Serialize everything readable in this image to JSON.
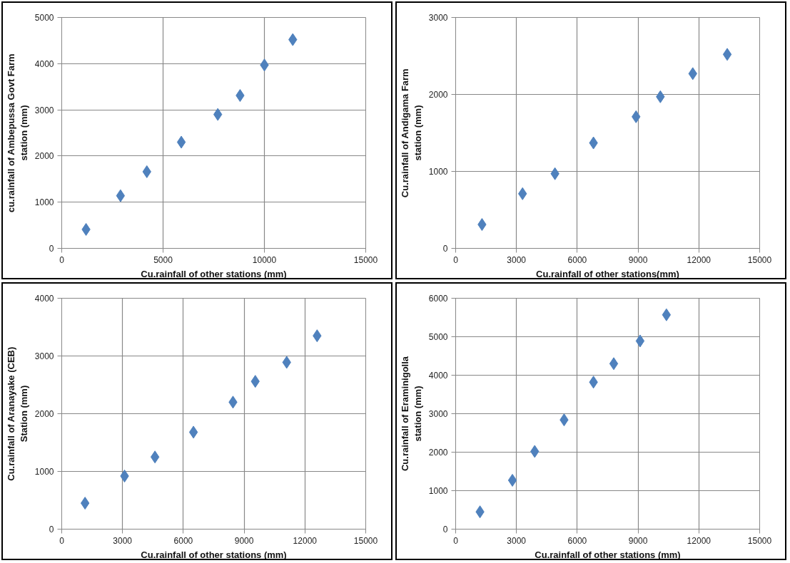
{
  "chart_data": [
    {
      "type": "scatter",
      "xlabel": "Cu.rainfall of other stations (mm)",
      "ylabel": "cu.rainfall of Ambepussa Govt Farm station (mm)",
      "marker": "diamond",
      "grid": true,
      "xlim": [
        0,
        15000
      ],
      "xticks": [
        0,
        5000,
        10000,
        15000
      ],
      "ylim": [
        0,
        5000
      ],
      "yticks": [
        0,
        1000,
        2000,
        3000,
        4000,
        5000
      ],
      "series": [
        {
          "color": "#4f81bd",
          "x": [
            1200,
            2900,
            4200,
            5900,
            7700,
            8800,
            10000,
            11400
          ],
          "values": [
            410,
            1140,
            1660,
            2300,
            2900,
            3310,
            3970,
            4520
          ]
        }
      ]
    },
    {
      "type": "scatter",
      "xlabel": "Cu.rainfall of other stations(mm)",
      "ylabel": "Cu.rainfall of Andigama Farm station (mm)",
      "marker": "diamond",
      "grid": true,
      "xlim": [
        0,
        15000
      ],
      "xticks": [
        0,
        3000,
        6000,
        9000,
        12000,
        15000
      ],
      "ylim": [
        0,
        3000
      ],
      "yticks": [
        0,
        1000,
        2000,
        3000
      ],
      "series": [
        {
          "color": "#4f81bd",
          "x": [
            1300,
            3300,
            4900,
            6800,
            8900,
            10100,
            11700,
            13400
          ],
          "values": [
            310,
            710,
            970,
            1370,
            1710,
            1970,
            2270,
            2520
          ]
        }
      ]
    },
    {
      "type": "scatter",
      "xlabel": "Cu.rainfall of other stations (mm)",
      "ylabel": "Cu.rainfall of Aranayake (CEB) Station (mm)",
      "marker": "diamond",
      "grid": true,
      "xlim": [
        0,
        15000
      ],
      "xticks": [
        0,
        3000,
        6000,
        9000,
        12000,
        15000
      ],
      "ylim": [
        0,
        4000
      ],
      "yticks": [
        0,
        1000,
        2000,
        3000,
        4000
      ],
      "series": [
        {
          "color": "#4f81bd",
          "x": [
            1150,
            3100,
            4600,
            6500,
            8450,
            9550,
            11100,
            12600
          ],
          "values": [
            450,
            920,
            1250,
            1680,
            2200,
            2560,
            2890,
            3350
          ]
        }
      ]
    },
    {
      "type": "scatter",
      "xlabel": "Cu.rainfall of other stations (mm)",
      "ylabel": "Cu.rainfall of Eraminigolla station (mm)",
      "marker": "diamond",
      "grid": true,
      "xlim": [
        0,
        15000
      ],
      "xticks": [
        0,
        3000,
        6000,
        9000,
        12000,
        15000
      ],
      "ylim": [
        0,
        6000
      ],
      "yticks": [
        0,
        1000,
        2000,
        3000,
        4000,
        5000,
        6000
      ],
      "series": [
        {
          "color": "#4f81bd",
          "x": [
            1200,
            2800,
            3900,
            5350,
            6800,
            7800,
            9100,
            10400
          ],
          "values": [
            450,
            1270,
            2020,
            2840,
            3820,
            4300,
            4890,
            5570
          ]
        }
      ]
    }
  ]
}
